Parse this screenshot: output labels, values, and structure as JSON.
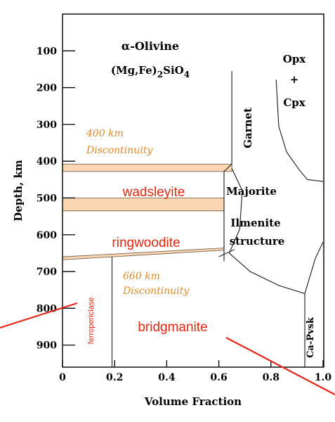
{
  "chart_data": {
    "type": "area",
    "xlabel": "Volume Fraction",
    "ylabel": "Depth, km",
    "xlim": [
      0,
      1.0
    ],
    "ylim": [
      960,
      0
    ],
    "x_ticks": [
      "0",
      "0.2",
      "0.4",
      "0.6",
      "0.8",
      "1.0"
    ],
    "y_ticks": [
      "100",
      "200",
      "300",
      "400",
      "500",
      "600",
      "700",
      "800",
      "900"
    ],
    "grid": false,
    "legend": "none",
    "colors": {
      "frame": "#000000",
      "band_fill": "#fad7b2",
      "band_stroke": "#7a6650",
      "orange_text": "#e08a2c",
      "red_text": "#e8250f",
      "arrow": "#e3261a"
    },
    "labels": {
      "olivine_line1": "α-Olivine",
      "olivine_line2_prefix": "(Mg,Fe)",
      "olivine_line2_sub1": "2",
      "olivine_line2_mid": "SiO",
      "olivine_line2_sub2": "4",
      "opx": "Opx",
      "plus": "+",
      "cpx": "Cpx",
      "garnet": "Garnet",
      "majorite": "Majorite",
      "ilmenite": "Ilmenite",
      "structure": "structure",
      "capvsk": "Ca-Pvsk",
      "disc400_line1": "400 km",
      "disc400_line2": "Discontinuity",
      "disc660_line1": "660 km",
      "disc660_line2": "Discontinuity",
      "wadsleyite": "wadsleyite",
      "ringwoodite": "ringwoodite",
      "bridgmanite": "bridgmanite",
      "ferropericlase": "ferropericlase"
    },
    "discontinuity_bands": [
      {
        "name": "400 km",
        "x_start": 0,
        "x_end": 0.65,
        "depth_top": 408,
        "depth_bottom": 428
      },
      {
        "name": "520 km",
        "x_start": 0,
        "x_end": 0.62,
        "depth_top": 500,
        "depth_bottom": 535
      },
      {
        "name": "660 km",
        "x_start": 0,
        "x_end": 0.62,
        "depth_top_left": 660,
        "depth_top_right": 636,
        "depth_bottom_left": 668,
        "depth_bottom_right": 642
      }
    ],
    "boundaries": [
      {
        "name": "olivine-garnet boundary",
        "points": [
          [
            0.65,
            155
          ],
          [
            0.65,
            408
          ],
          [
            0.62,
            428
          ],
          [
            0.62,
            672
          ]
        ]
      },
      {
        "name": "garnet-majorite to pyroxene boundary",
        "points": [
          [
            0.82,
            178
          ],
          [
            0.83,
            305
          ],
          [
            0.86,
            375
          ],
          [
            0.91,
            425
          ],
          [
            0.94,
            450
          ],
          [
            1.0,
            455
          ]
        ]
      },
      {
        "name": "garnet-majorite to ilmenite",
        "points": [
          [
            0.65,
            420
          ],
          [
            0.69,
            480
          ],
          [
            0.68,
            585
          ],
          [
            0.64,
            650
          ]
        ]
      },
      {
        "name": "ilmenite lower boundary",
        "points": [
          [
            0.64,
            650
          ],
          [
            0.72,
            700
          ],
          [
            0.83,
            738
          ],
          [
            0.93,
            760
          ],
          [
            0.97,
            665
          ],
          [
            1.0,
            620
          ]
        ]
      },
      {
        "name": "ferropericlase boundary",
        "points": [
          [
            0.19,
            660
          ],
          [
            0.19,
            960
          ]
        ]
      },
      {
        "name": "Ca-Pvsk boundary",
        "points": [
          [
            0.93,
            760
          ],
          [
            0.93,
            960
          ]
        ]
      }
    ]
  }
}
